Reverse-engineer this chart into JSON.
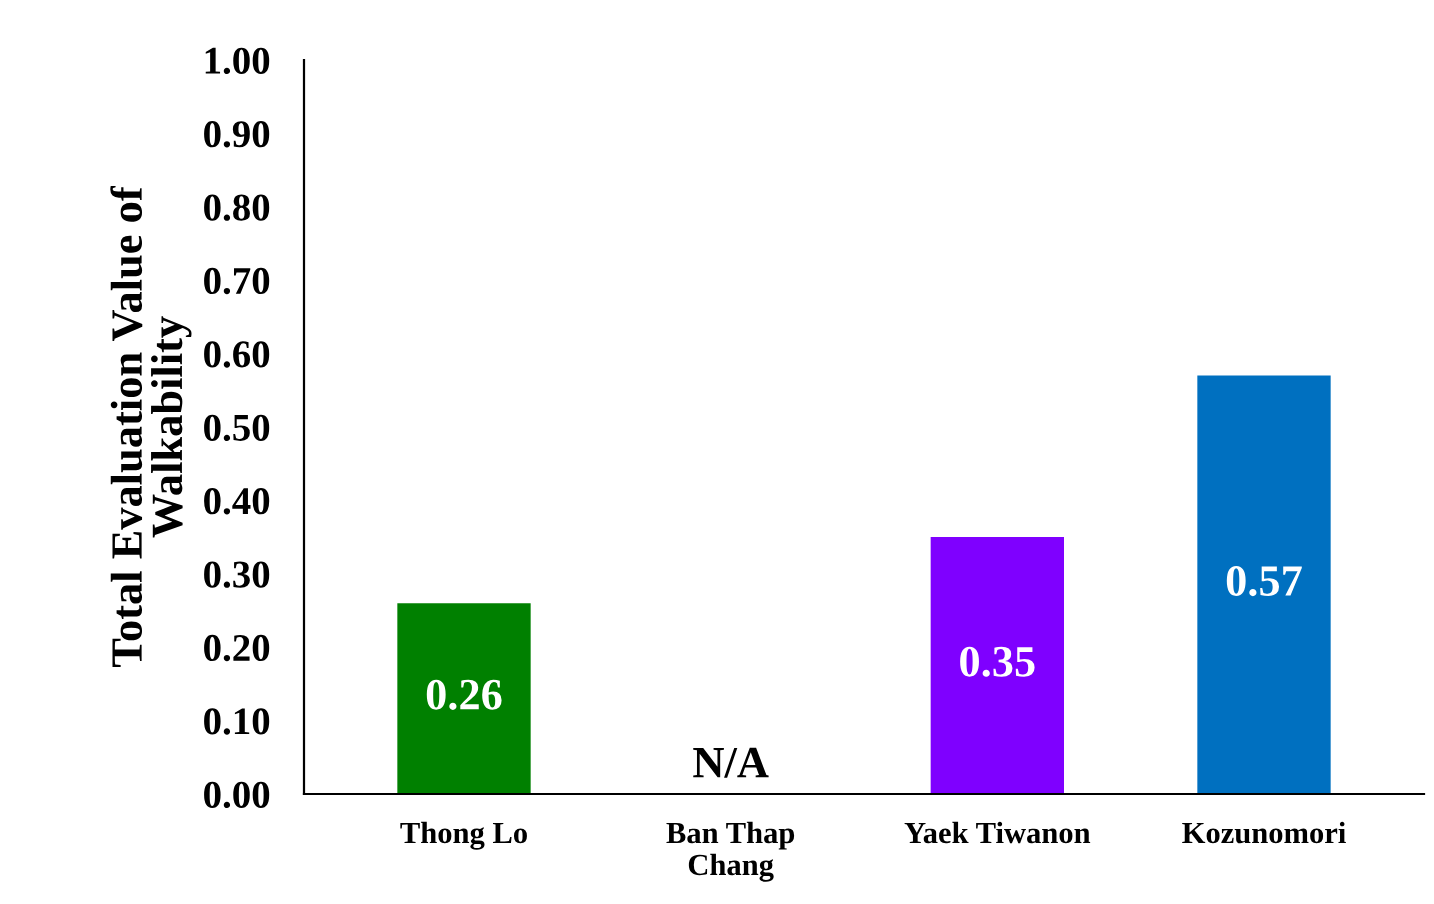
{
  "chart_data": {
    "type": "bar",
    "ylabel": "Total Evaluation Value of\nWalkability",
    "categories": [
      "Thong Lo",
      "Ban Thap\nChang",
      "Yaek Tiwanon",
      "Kozunomori"
    ],
    "values": [
      0.26,
      null,
      0.35,
      0.57
    ],
    "colors": [
      "#008000",
      null,
      "#7f00ff",
      "#0070c0"
    ],
    "value_labels": [
      "0.26",
      "N/A",
      "0.35",
      "0.57"
    ],
    "ylim": [
      0,
      1
    ],
    "yticks": [
      {
        "value": 0,
        "label": "0.00"
      },
      {
        "value": 0.1,
        "label": "0.10"
      },
      {
        "value": 0.2,
        "label": "0.20"
      },
      {
        "value": 0.3,
        "label": "0.30"
      },
      {
        "value": 0.4,
        "label": "0.40"
      },
      {
        "value": 0.5,
        "label": "0.50"
      },
      {
        "value": 0.6,
        "label": "0.60"
      },
      {
        "value": 0.7,
        "label": "0.70"
      },
      {
        "value": 0.8,
        "label": "0.80"
      },
      {
        "value": 0.9,
        "label": "0.90"
      },
      {
        "value": 1,
        "label": "1.00"
      }
    ],
    "grid": false
  }
}
